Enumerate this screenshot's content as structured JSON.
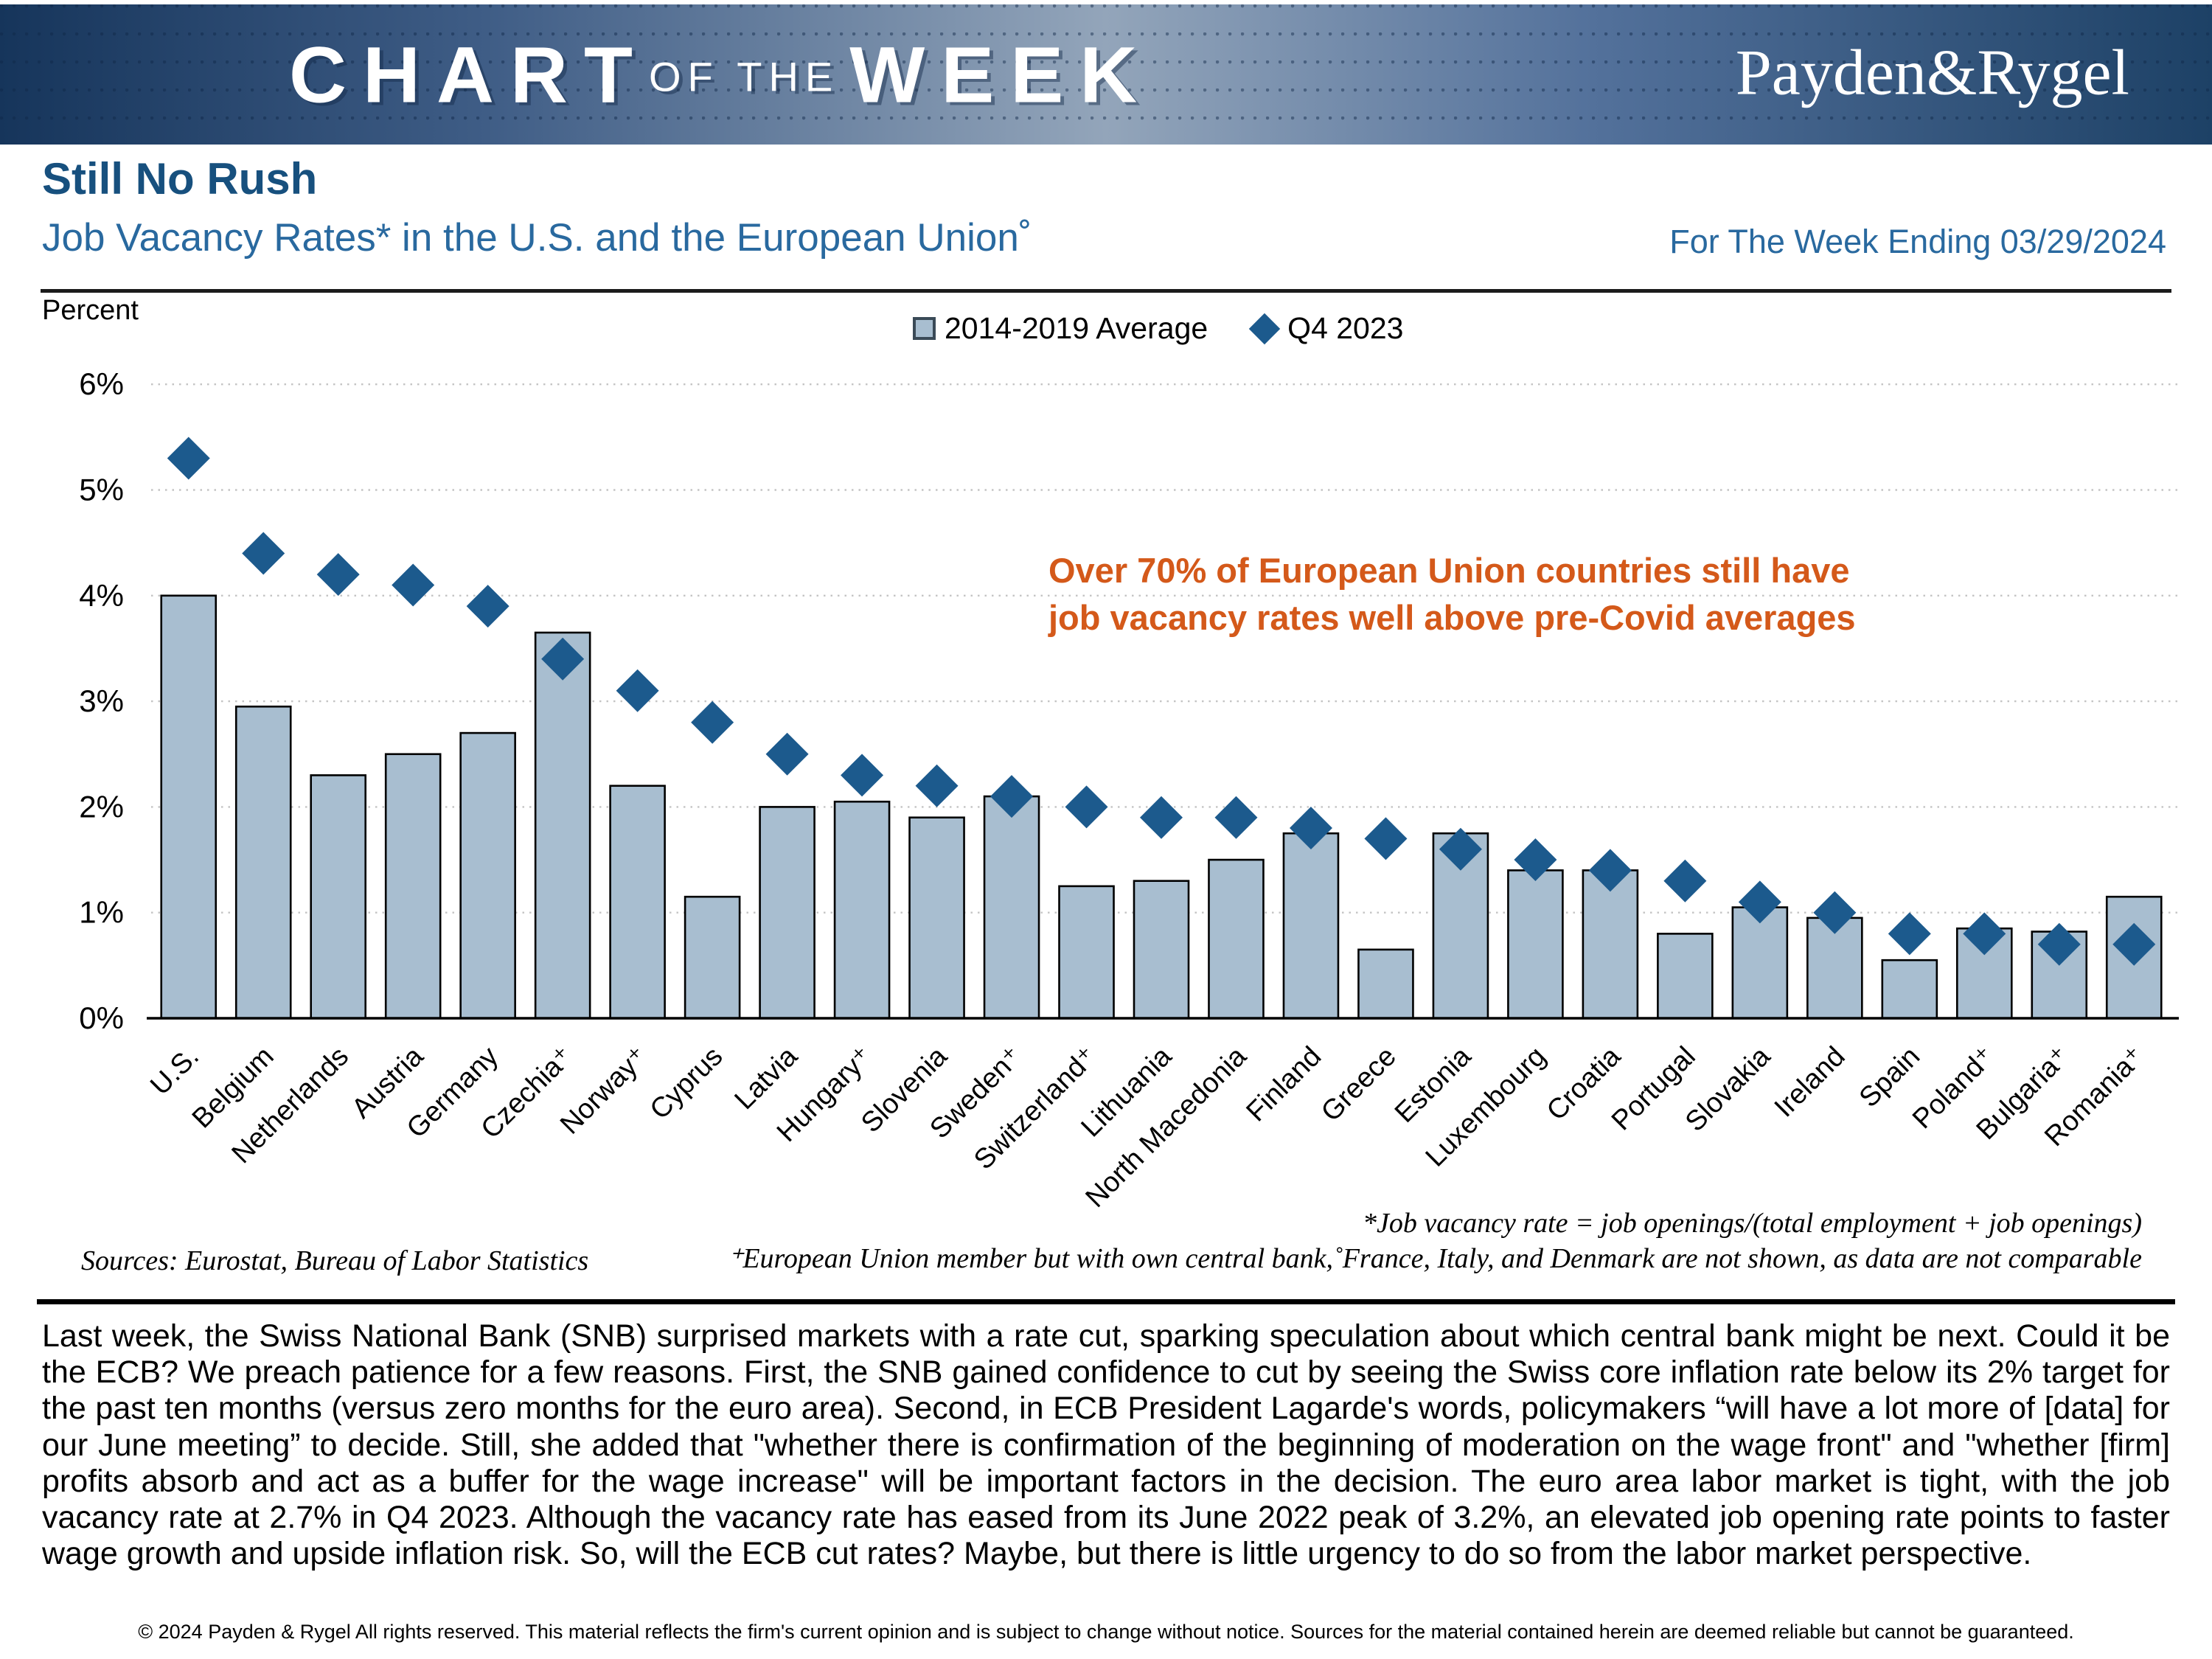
{
  "header": {
    "brand_chart": "CHART",
    "brand_of_the": "OF THE",
    "brand_week": "WEEK",
    "logo": "Payden&Rygel"
  },
  "title": {
    "heading": "Still No Rush",
    "subtitle": "Job Vacancy Rates* in the U.S. and the European Union˚",
    "week_ending": "For The Week Ending 03/29/2024"
  },
  "chart": {
    "y_axis_title": "Percent",
    "legend": [
      {
        "label": "2014-2019 Average"
      },
      {
        "label": "Q4 2023"
      }
    ],
    "annotation_line1": "Over 70% of European Union countries still have",
    "annotation_line2": "job vacancy rates well above pre-Covid averages",
    "colors": {
      "bar_fill": "#a8bed0",
      "bar_stroke": "#000000",
      "diamond": "#1c5a8d",
      "gridline": "#c4c4c4",
      "annotation": "#d4591a"
    }
  },
  "chart_data": {
    "type": "bar",
    "title": "Job Vacancy Rates in the U.S. and the European Union",
    "categories": [
      "U.S.",
      "Belgium",
      "Netherlands",
      "Austria",
      "Germany",
      "Czechia⁺",
      "Norway⁺",
      "Cyprus",
      "Latvia",
      "Hungary⁺",
      "Slovenia",
      "Sweden⁺",
      "Switzerland⁺",
      "Lithuania",
      "North Macedonia",
      "Finland",
      "Greece",
      "Estonia",
      "Luxembourg",
      "Croatia",
      "Portugal",
      "Slovakia",
      "Ireland",
      "Spain",
      "Poland⁺",
      "Bulgaria⁺",
      "Romania⁺"
    ],
    "series": [
      {
        "name": "2014-2019 Average",
        "type": "bar",
        "values": [
          4.0,
          2.95,
          2.3,
          2.5,
          2.7,
          3.65,
          2.2,
          1.15,
          2.0,
          2.05,
          1.9,
          2.1,
          1.25,
          1.3,
          1.5,
          1.75,
          0.65,
          1.75,
          1.4,
          1.4,
          0.8,
          1.05,
          0.95,
          0.55,
          0.85,
          0.82,
          1.15
        ]
      },
      {
        "name": "Q4 2023",
        "type": "scatter",
        "marker": "diamond",
        "values": [
          5.3,
          4.4,
          4.2,
          4.1,
          3.9,
          3.4,
          3.1,
          2.8,
          2.5,
          2.3,
          2.2,
          2.1,
          2.0,
          1.9,
          1.9,
          1.8,
          1.7,
          1.6,
          1.5,
          1.4,
          1.3,
          1.1,
          1.0,
          0.8,
          0.8,
          0.7,
          0.7
        ]
      }
    ],
    "ylabel": "Percent",
    "ylim": [
      0,
      6
    ],
    "ytick_step": 1,
    "ytick_suffix": "%",
    "grid": "horizontal-dotted",
    "legend_position": "top-center"
  },
  "footnotes": {
    "sources": "Sources: Eurostat, Bureau of Labor Statistics",
    "definition": "*Job vacancy rate = job openings/(total employment + job openings)",
    "membership": "⁺European Union member but with own central bank,˚France, Italy, and Denmark are not shown, as data are not comparable"
  },
  "body": {
    "paragraph": "Last week, the Swiss National Bank (SNB) surprised markets with a rate cut, sparking speculation about which central bank might be next. Could it be the ECB? We preach patience for a few reasons. First, the SNB gained confidence to cut by seeing the Swiss core inflation rate below its 2% target for the past ten months (versus zero months for the euro area). Second, in ECB President Lagarde's words, policymakers “will have a lot more of [data] for our June meeting” to decide. Still, she added that \"whether there is confirmation of the beginning of moderation on the wage front\" and \"whether [firm] profits absorb and act as a buffer for the wage increase\" will be important factors in the decision. The euro area labor market is tight, with the job vacancy rate at 2.7% in Q4 2023. Although the vacancy rate has eased from its June 2022 peak of 3.2%, an elevated job opening rate points to faster wage growth and upside inflation risk. So, will the ECB cut rates?  Maybe, but there is little urgency to do so from the labor market perspective."
  },
  "footer": {
    "copyright": "© 2024 Payden & Rygel All rights reserved. This material reflects the firm's current opinion and is subject to change without notice. Sources for the material contained herein are deemed reliable but cannot be guaranteed."
  }
}
